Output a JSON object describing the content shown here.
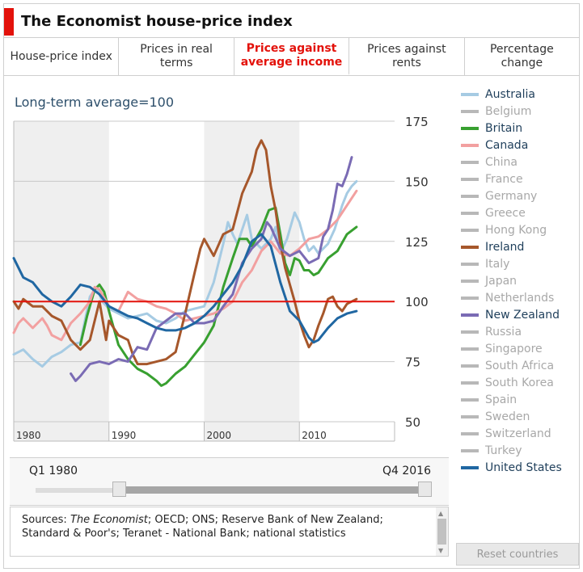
{
  "header": {
    "title": "The Economist house-price index"
  },
  "tabs": [
    {
      "label": "House-price index",
      "active": false
    },
    {
      "label": "Prices in real terms",
      "active": false
    },
    {
      "label": "Prices against average income",
      "active": true
    },
    {
      "label": "Prices against rents",
      "active": false
    },
    {
      "label": "Percentage change",
      "active": false
    }
  ],
  "chart_data": {
    "type": "line",
    "title": "Prices against average income",
    "subtitle": "Long-term average=100",
    "xlabel": "",
    "ylabel": "",
    "xlim": [
      1980,
      2020
    ],
    "ylim": [
      50,
      175
    ],
    "y_ticks": [
      50,
      75,
      100,
      125,
      150,
      175
    ],
    "x_ticks": [
      1980,
      1990,
      2000,
      2010
    ],
    "x_tick_labels": [
      "1980",
      "1990",
      "2000",
      "2010"
    ],
    "shaded_decades": [
      [
        1980,
        1990
      ],
      [
        2000,
        2010
      ]
    ],
    "reference_line": {
      "value": 100,
      "color": "#e3120b"
    },
    "grid": true,
    "series": [
      {
        "name": "Australia",
        "color": "#a6cbe3",
        "points": [
          [
            1980,
            78
          ],
          [
            1981,
            80
          ],
          [
            1982,
            76
          ],
          [
            1983,
            73
          ],
          [
            1984,
            77
          ],
          [
            1985,
            79
          ],
          [
            1986,
            82
          ],
          [
            1987,
            83
          ],
          [
            1988,
            102
          ],
          [
            1988.7,
            106
          ],
          [
            1989.3,
            100
          ],
          [
            1990,
            97
          ],
          [
            1991,
            95
          ],
          [
            1992,
            93
          ],
          [
            1993,
            94
          ],
          [
            1994,
            95
          ],
          [
            1995,
            92
          ],
          [
            1996,
            91
          ],
          [
            1997,
            93
          ],
          [
            1998,
            96
          ],
          [
            1999,
            97
          ],
          [
            2000,
            98
          ],
          [
            2001,
            108
          ],
          [
            2002,
            124
          ],
          [
            2002.5,
            133
          ],
          [
            2003,
            128
          ],
          [
            2003.5,
            124
          ],
          [
            2004,
            130
          ],
          [
            2004.5,
            136
          ],
          [
            2005,
            126
          ],
          [
            2006,
            122
          ],
          [
            2007,
            126
          ],
          [
            2007.5,
            131
          ],
          [
            2008,
            120
          ],
          [
            2008.7,
            126
          ],
          [
            2009.5,
            137
          ],
          [
            2010,
            133
          ],
          [
            2010.5,
            126
          ],
          [
            2011,
            121
          ],
          [
            2011.5,
            123
          ],
          [
            2012,
            120
          ],
          [
            2013,
            124
          ],
          [
            2013.7,
            130
          ],
          [
            2014.5,
            140
          ],
          [
            2015,
            145
          ],
          [
            2015.5,
            148
          ],
          [
            2016,
            150
          ]
        ]
      },
      {
        "name": "Britain",
        "color": "#38a030",
        "points": [
          [
            1987,
            82
          ],
          [
            1987.7,
            94
          ],
          [
            1988.5,
            105
          ],
          [
            1989,
            107
          ],
          [
            1989.5,
            104
          ],
          [
            1990,
            96
          ],
          [
            1990.5,
            89
          ],
          [
            1991,
            82
          ],
          [
            1992,
            76
          ],
          [
            1993,
            72
          ],
          [
            1994,
            70
          ],
          [
            1995,
            67
          ],
          [
            1995.5,
            65
          ],
          [
            1996,
            66
          ],
          [
            1997,
            70
          ],
          [
            1998,
            73
          ],
          [
            1999,
            78
          ],
          [
            2000,
            83
          ],
          [
            2001,
            90
          ],
          [
            2002,
            106
          ],
          [
            2003,
            118
          ],
          [
            2003.7,
            126
          ],
          [
            2004.5,
            126
          ],
          [
            2005,
            123
          ],
          [
            2006,
            130
          ],
          [
            2006.8,
            138
          ],
          [
            2007.5,
            139
          ],
          [
            2008,
            128
          ],
          [
            2008.5,
            116
          ],
          [
            2009,
            111
          ],
          [
            2009.5,
            118
          ],
          [
            2010,
            117
          ],
          [
            2010.5,
            113
          ],
          [
            2011,
            113
          ],
          [
            2011.5,
            111
          ],
          [
            2012,
            112
          ],
          [
            2012.5,
            115
          ],
          [
            2013,
            118
          ],
          [
            2014,
            121
          ],
          [
            2015,
            128
          ],
          [
            2016,
            131
          ]
        ]
      },
      {
        "name": "Canada",
        "color": "#f2a0a0",
        "points": [
          [
            1980,
            87
          ],
          [
            1980.5,
            91
          ],
          [
            1981,
            93
          ],
          [
            1982,
            89
          ],
          [
            1983,
            93
          ],
          [
            1983.5,
            90
          ],
          [
            1984,
            86
          ],
          [
            1985,
            84
          ],
          [
            1986,
            91
          ],
          [
            1987,
            95
          ],
          [
            1988,
            100
          ],
          [
            1988.5,
            106
          ],
          [
            1989,
            105
          ],
          [
            1990,
            98
          ],
          [
            1991,
            96
          ],
          [
            1992,
            104
          ],
          [
            1993,
            101
          ],
          [
            1994,
            100
          ],
          [
            1995,
            98
          ],
          [
            1996,
            97
          ],
          [
            1997,
            95
          ],
          [
            1998,
            92
          ],
          [
            1999,
            93
          ],
          [
            2000,
            94
          ],
          [
            2001,
            95
          ],
          [
            2002,
            97
          ],
          [
            2003,
            100
          ],
          [
            2004,
            108
          ],
          [
            2005,
            113
          ],
          [
            2006,
            121
          ],
          [
            2007,
            125
          ],
          [
            2008,
            120
          ],
          [
            2009,
            119
          ],
          [
            2010,
            122
          ],
          [
            2011,
            126
          ],
          [
            2012,
            127
          ],
          [
            2013,
            130
          ],
          [
            2014,
            134
          ],
          [
            2015,
            140
          ],
          [
            2016,
            146
          ]
        ]
      },
      {
        "name": "Ireland",
        "color": "#a6572b",
        "points": [
          [
            1980,
            100
          ],
          [
            1980.5,
            97
          ],
          [
            1981,
            101
          ],
          [
            1982,
            98
          ],
          [
            1983,
            98
          ],
          [
            1984,
            94
          ],
          [
            1985,
            92
          ],
          [
            1986,
            84
          ],
          [
            1987,
            80
          ],
          [
            1988,
            84
          ],
          [
            1989,
            100
          ],
          [
            1989.7,
            84
          ],
          [
            1990,
            92
          ],
          [
            1991,
            86
          ],
          [
            1992,
            84
          ],
          [
            1992.5,
            78
          ],
          [
            1993,
            74
          ],
          [
            1994,
            74
          ],
          [
            1995,
            75
          ],
          [
            1996,
            76
          ],
          [
            1997,
            79
          ],
          [
            1998,
            95
          ],
          [
            1999,
            112
          ],
          [
            1999.6,
            122
          ],
          [
            2000,
            126
          ],
          [
            2001,
            119
          ],
          [
            2002,
            128
          ],
          [
            2003,
            130
          ],
          [
            2004,
            145
          ],
          [
            2005,
            154
          ],
          [
            2005.5,
            163
          ],
          [
            2006,
            167
          ],
          [
            2006.5,
            163
          ],
          [
            2007,
            148
          ],
          [
            2007.5,
            138
          ],
          [
            2008,
            124
          ],
          [
            2008.5,
            114
          ],
          [
            2009,
            107
          ],
          [
            2009.5,
            100
          ],
          [
            2010,
            92
          ],
          [
            2010.5,
            86
          ],
          [
            2011,
            81
          ],
          [
            2011.5,
            84
          ],
          [
            2012,
            90
          ],
          [
            2012.5,
            95
          ],
          [
            2013,
            101
          ],
          [
            2013.5,
            102
          ],
          [
            2014,
            98
          ],
          [
            2014.5,
            96
          ],
          [
            2015,
            99
          ],
          [
            2016,
            101
          ]
        ]
      },
      {
        "name": "New Zealand",
        "color": "#7a6bb4",
        "points": [
          [
            1986,
            70
          ],
          [
            1986.5,
            67
          ],
          [
            1987,
            69
          ],
          [
            1988,
            74
          ],
          [
            1989,
            75
          ],
          [
            1990,
            74
          ],
          [
            1991,
            76
          ],
          [
            1992,
            75
          ],
          [
            1993,
            81
          ],
          [
            1994,
            80
          ],
          [
            1995,
            89
          ],
          [
            1996,
            92
          ],
          [
            1997,
            95
          ],
          [
            1998,
            95
          ],
          [
            1999,
            91
          ],
          [
            2000,
            91
          ],
          [
            2001,
            92
          ],
          [
            2002,
            98
          ],
          [
            2003,
            103
          ],
          [
            2004,
            116
          ],
          [
            2005,
            122
          ],
          [
            2006,
            126
          ],
          [
            2006.6,
            133
          ],
          [
            2007,
            131
          ],
          [
            2008,
            122
          ],
          [
            2009,
            119
          ],
          [
            2010,
            121
          ],
          [
            2011,
            116
          ],
          [
            2012,
            118
          ],
          [
            2012.5,
            127
          ],
          [
            2013,
            130
          ],
          [
            2013.5,
            138
          ],
          [
            2014,
            149
          ],
          [
            2014.5,
            148
          ],
          [
            2015,
            153
          ],
          [
            2015.5,
            160
          ]
        ]
      },
      {
        "name": "United States",
        "color": "#2067a2",
        "points": [
          [
            1980,
            118
          ],
          [
            1981,
            110
          ],
          [
            1982,
            108
          ],
          [
            1983,
            103
          ],
          [
            1984,
            100
          ],
          [
            1985,
            98
          ],
          [
            1986,
            102
          ],
          [
            1987,
            107
          ],
          [
            1988,
            106
          ],
          [
            1989,
            103
          ],
          [
            1990,
            98
          ],
          [
            1991,
            96
          ],
          [
            1992,
            94
          ],
          [
            1993,
            93
          ],
          [
            1994,
            91
          ],
          [
            1995,
            89
          ],
          [
            1996,
            88
          ],
          [
            1997,
            88
          ],
          [
            1998,
            89
          ],
          [
            1999,
            91
          ],
          [
            2000,
            94
          ],
          [
            2001,
            98
          ],
          [
            2002,
            103
          ],
          [
            2003,
            108
          ],
          [
            2004,
            115
          ],
          [
            2005,
            125
          ],
          [
            2006,
            128
          ],
          [
            2007,
            123
          ],
          [
            2008,
            108
          ],
          [
            2009,
            96
          ],
          [
            2010,
            92
          ],
          [
            2011,
            85
          ],
          [
            2011.5,
            83
          ],
          [
            2012,
            84
          ],
          [
            2013,
            89
          ],
          [
            2014,
            93
          ],
          [
            2015,
            95
          ],
          [
            2016,
            96
          ]
        ]
      }
    ]
  },
  "legend": {
    "items": [
      {
        "name": "Australia",
        "color": "#a6cbe3",
        "active": true
      },
      {
        "name": "Belgium",
        "color": "#b8b8b8",
        "active": false
      },
      {
        "name": "Britain",
        "color": "#38a030",
        "active": true
      },
      {
        "name": "Canada",
        "color": "#f2a0a0",
        "active": true
      },
      {
        "name": "China",
        "color": "#b8b8b8",
        "active": false
      },
      {
        "name": "France",
        "color": "#b8b8b8",
        "active": false
      },
      {
        "name": "Germany",
        "color": "#b8b8b8",
        "active": false
      },
      {
        "name": "Greece",
        "color": "#b8b8b8",
        "active": false
      },
      {
        "name": "Hong Kong",
        "color": "#b8b8b8",
        "active": false
      },
      {
        "name": "Ireland",
        "color": "#a6572b",
        "active": true
      },
      {
        "name": "Italy",
        "color": "#b8b8b8",
        "active": false
      },
      {
        "name": "Japan",
        "color": "#b8b8b8",
        "active": false
      },
      {
        "name": "Netherlands",
        "color": "#b8b8b8",
        "active": false
      },
      {
        "name": "New Zealand",
        "color": "#7a6bb4",
        "active": true
      },
      {
        "name": "Russia",
        "color": "#b8b8b8",
        "active": false
      },
      {
        "name": "Singapore",
        "color": "#b8b8b8",
        "active": false
      },
      {
        "name": "South Africa",
        "color": "#b8b8b8",
        "active": false
      },
      {
        "name": "South Korea",
        "color": "#b8b8b8",
        "active": false
      },
      {
        "name": "Spain",
        "color": "#b8b8b8",
        "active": false
      },
      {
        "name": "Sweden",
        "color": "#b8b8b8",
        "active": false
      },
      {
        "name": "Switzerland",
        "color": "#b8b8b8",
        "active": false
      },
      {
        "name": "Turkey",
        "color": "#b8b8b8",
        "active": false
      },
      {
        "name": "United States",
        "color": "#2067a2",
        "active": true
      }
    ]
  },
  "timeline": {
    "start_label": "Q1 1980",
    "end_label": "Q4 2016"
  },
  "sources": {
    "prefix": "Sources: ",
    "italic": "The Economist",
    "rest": "; OECD; ONS; Reserve Bank of New Zealand; Standard & Poor's; Teranet - National Bank; national statistics"
  },
  "controls": {
    "reset_label": "Reset countries"
  },
  "colors": {
    "accent": "#e3120b",
    "shade": "#efefef",
    "grid": "#c8c8c8",
    "axis_text": "#333333"
  }
}
